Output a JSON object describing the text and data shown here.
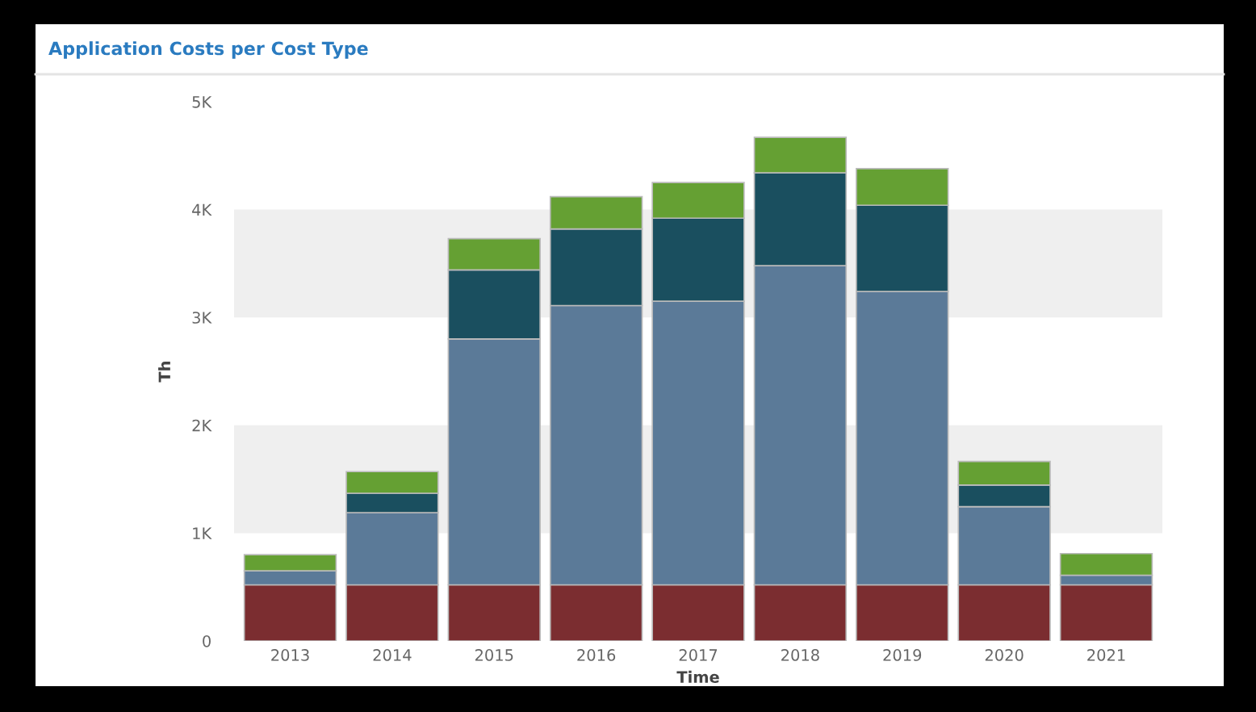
{
  "chart_data": {
    "type": "bar",
    "title": "Application Costs per Cost Type",
    "xlabel": "Time",
    "ylabel": "Th",
    "stacked": true,
    "categories": [
      "2013",
      "2014",
      "2015",
      "2016",
      "2017",
      "2018",
      "2019",
      "2020",
      "2021"
    ],
    "series": [
      {
        "color": "#7b2d30",
        "values": [
          520,
          520,
          520,
          520,
          520,
          520,
          520,
          520,
          520
        ]
      },
      {
        "color": "#5b7a98",
        "values": [
          130,
          670,
          2280,
          2590,
          2630,
          2960,
          2720,
          725,
          90
        ]
      },
      {
        "color": "#1a4f5f",
        "values": [
          0,
          180,
          640,
          710,
          770,
          860,
          800,
          200,
          0
        ]
      },
      {
        "color": "#65a033",
        "values": [
          150,
          200,
          290,
          300,
          330,
          330,
          340,
          220,
          200
        ]
      }
    ],
    "ylim": [
      0,
      5000
    ],
    "yticks": [
      0,
      {
        "value": 1000,
        "label": "1K"
      },
      {
        "value": 2000,
        "label": "2K"
      },
      {
        "value": 3000,
        "label": "3K"
      },
      {
        "value": 4000,
        "label": "4K"
      },
      {
        "value": 5000,
        "label": "5K"
      }
    ],
    "bands": [
      {
        "axis": "y",
        "from": 1000,
        "to": 2000,
        "color": "#efefef"
      },
      {
        "axis": "y",
        "from": 3000,
        "to": 4000,
        "color": "#efefef"
      }
    ],
    "grid": false,
    "legend": false
  }
}
